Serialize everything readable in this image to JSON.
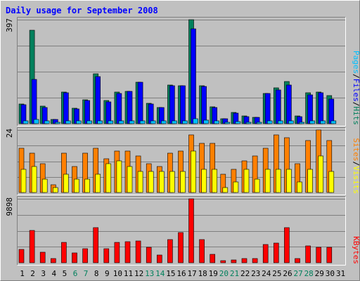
{
  "chart_data": {
    "type": "bar",
    "title": "Daily usage for September 2008",
    "colors": {
      "background": "#c0c0c0",
      "plot_bg": "#c0c0c0",
      "border_light": "#ffffff",
      "border_dark": "#808080",
      "grid": "#7f7f7f",
      "title": "#0000ff",
      "axis_text": "#000000",
      "weekend_day": "#00805c",
      "hits": "#00805c",
      "files": "#0000ff",
      "pages": "#00c0ff",
      "visits": "#ffff00",
      "sites": "#ff8000",
      "kbytes": "#ff0000"
    },
    "days": [
      "1",
      "2",
      "3",
      "4",
      "5",
      "6",
      "7",
      "8",
      "9",
      "10",
      "11",
      "12",
      "13",
      "14",
      "15",
      "16",
      "17",
      "18",
      "19",
      "20",
      "21",
      "22",
      "23",
      "24",
      "25",
      "26",
      "27",
      "28",
      "29",
      "30",
      "31"
    ],
    "weekend_days": [
      "6",
      "7",
      "13",
      "14",
      "20",
      "21",
      "27",
      "28"
    ],
    "panels": [
      {
        "id": "hits_files_pages",
        "max_label": "397",
        "legend": [
          {
            "key": "pages",
            "label": "Pages",
            "color": "#00c0ff"
          },
          {
            "key": "files",
            "label": "Files",
            "color": "#0000ff"
          },
          {
            "key": "hits",
            "label": "Hits",
            "color": "#00805c"
          }
        ],
        "ymax": 397,
        "series": [
          {
            "name": "Hits",
            "color": "#00805c",
            "values": [
              74,
              357,
              67,
              17,
              120,
              58,
              90,
              190,
              88,
              122,
              123,
              159,
              77,
              63,
              148,
              144,
              397,
              144,
              65,
              20,
              43,
              30,
              25,
              115,
              137,
              160,
              30,
              117,
              120,
              107,
              0
            ]
          },
          {
            "name": "Files",
            "color": "#0000ff",
            "values": [
              72,
              170,
              62,
              15,
              117,
              55,
              88,
              179,
              82,
              115,
              123,
              157,
              76,
              61,
              146,
              144,
              361,
              142,
              63,
              20,
              40,
              27,
              23,
              115,
              130,
              148,
              27,
              110,
              117,
              95,
              0
            ]
          },
          {
            "name": "Pages",
            "color": "#00c0ff",
            "values": [
              12,
              15,
              10,
              5,
              12,
              10,
              11,
              12,
              10,
              12,
              12,
              11,
              11,
              10,
              12,
              12,
              20,
              13,
              10,
              5,
              7,
              6,
              5,
              10,
              11,
              11,
              6,
              10,
              11,
              10,
              0
            ]
          }
        ]
      },
      {
        "id": "sites_visits",
        "max_label": "24",
        "legend": [
          {
            "key": "sites",
            "label": "Sites",
            "color": "#ff8000"
          },
          {
            "key": "visits",
            "label": "Visits",
            "color": "#ffff00"
          }
        ],
        "ymax": 24,
        "series": [
          {
            "name": "Sites",
            "color": "#ff8000",
            "values": [
              17,
              15,
              11,
              3,
              15,
              10,
              15,
              17,
              13,
              16,
              16,
              14,
              11,
              10,
              15,
              16,
              22,
              19,
              19,
              7,
              9,
              12,
              14,
              17,
              22,
              21,
              11,
              20,
              24,
              20,
              0
            ]
          },
          {
            "name": "Visits",
            "color": "#ffff00",
            "values": [
              9,
              10,
              5,
              2,
              7,
              5,
              5,
              7,
              11,
              12,
              10,
              8,
              8,
              8,
              8,
              8,
              16,
              9,
              9,
              2,
              4,
              9,
              5,
              9,
              9,
              9,
              4,
              9,
              14,
              8,
              0
            ]
          }
        ]
      },
      {
        "id": "kbytes",
        "max_label": "9898",
        "legend": [
          {
            "key": "kbytes",
            "label": "KBytes",
            "color": "#ff0000"
          }
        ],
        "ymax": 9898,
        "series": [
          {
            "name": "KBytes",
            "color": "#ff0000",
            "values": [
              2050,
              5000,
              1600,
              600,
              3200,
              1500,
              2200,
              5400,
              2200,
              3100,
              3300,
              3400,
              2400,
              1200,
              3600,
              4700,
              9898,
              3600,
              1300,
              300,
              400,
              700,
              700,
              2800,
              3000,
              5400,
              600,
              2600,
              2400,
              2400,
              0
            ]
          }
        ]
      }
    ]
  }
}
